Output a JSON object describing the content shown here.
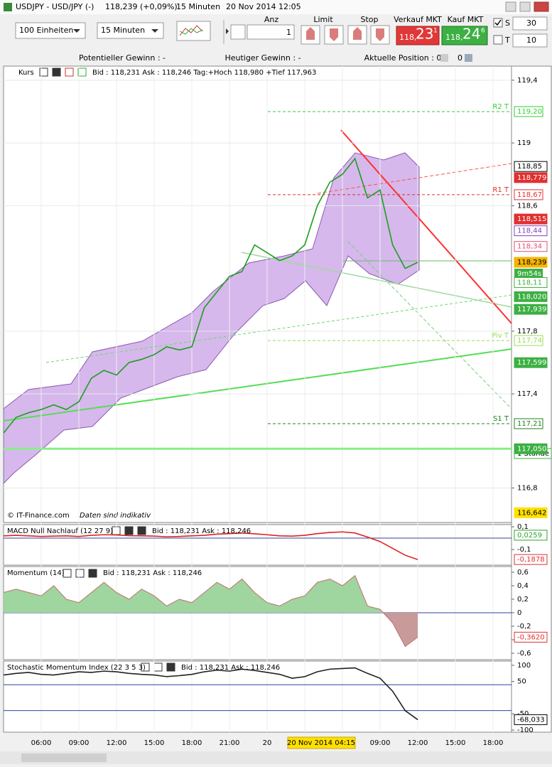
{
  "window": {
    "title": "USDJPY - USD/JPY (-)",
    "quote": "118,239 (+0,09%)",
    "interval": "15 Minuten",
    "datetime": "20 Nov 2014 12:05"
  },
  "toolbar": {
    "units": "100 Einheiten",
    "interval": "15 Minuten",
    "qty_label": "Anz",
    "qty": "1",
    "limit": "Limit",
    "stop": "Stop",
    "sell_label": "Verkauf MKT",
    "sell_prefix": "118,",
    "sell_big": "23",
    "sell_sup": "1",
    "buy_label": "Kauf MKT",
    "buy_prefix": "118,",
    "buy_big": "24",
    "buy_sup": "6",
    "s_label": "S",
    "s_value": "30",
    "t_label": "T",
    "t_value": "10"
  },
  "status": {
    "potential": "Potentieller Gewinn : -",
    "today": "Heutiger Gewinn : -",
    "position": "Aktuelle Position : 0",
    "position2": "0"
  },
  "xaxis": {
    "labels": [
      "06:00",
      "09:00",
      "12:00",
      "15:00",
      "18:00",
      "21:00",
      "20",
      null,
      null,
      "09:00",
      "12:00",
      "15:00",
      "18:00"
    ],
    "cursor_label": "20 Nov 2014 04:15"
  },
  "chart_data": [
    {
      "type": "line",
      "title": "Kurs",
      "info": "Bid : 118,231 Ask : 118,246 Tag:+Hoch 118,980 +Tief 117,963",
      "watermark": "© IT-Finance.com",
      "watermark2": "Daten sind indikativ",
      "countdown": "9m54s",
      "period_label": "1 Stunde",
      "grid": true,
      "ylim": [
        116.58,
        119.49
      ],
      "yticks": [
        {
          "value": 119.4,
          "label": "119,4"
        },
        119,
        {
          "value": 118.6,
          "label": "118,6"
        },
        {
          "value": 117.8,
          "label": "117,8"
        },
        {
          "value": 117.4,
          "label": "117,4"
        },
        {
          "value": 116.8,
          "label": "116,8"
        }
      ],
      "levels": [
        {
          "label": "R2 T",
          "value": 119.2,
          "tag": "119,20",
          "color": "#33cc33"
        },
        {
          "label": "R1 T",
          "value": 118.67,
          "tag": "118,67",
          "color": "#e03030"
        },
        {
          "label": "Piv T",
          "value": 117.74,
          "tag": "117,74",
          "color": "#99dd55"
        },
        {
          "label": "S1 T",
          "value": 117.21,
          "tag": "117,21",
          "color": "#208020"
        }
      ],
      "tags": [
        {
          "value": 118.85,
          "label": "118,85",
          "bg": "#ffffff",
          "fg": "#000000"
        },
        {
          "value": 118.779,
          "label": "118,779",
          "bg": "#e03030",
          "fg": "#ffffff"
        },
        {
          "value": 118.515,
          "label": "118,515",
          "bg": "#e03030",
          "fg": "#ffffff"
        },
        {
          "value": 118.44,
          "label": "118,44",
          "bg": "#ffffff",
          "fg": "#8040c0"
        },
        {
          "value": 118.34,
          "label": "118,34",
          "bg": "#ffffff",
          "fg": "#e05070"
        },
        {
          "value": 118.239,
          "label": "118,239",
          "bg": "#f5b400",
          "fg": "#000000"
        },
        {
          "value": 118.11,
          "label": "118,11",
          "bg": "#ffffff",
          "fg": "#40b040"
        },
        {
          "value": 118.02,
          "label": "118,020",
          "bg": "#3cb043",
          "fg": "#ffffff"
        },
        {
          "value": 117.939,
          "label": "117,939",
          "bg": "#3cb043",
          "fg": "#ffffff"
        },
        {
          "value": 117.599,
          "label": "117,599",
          "bg": "#3cb043",
          "fg": "#ffffff"
        },
        {
          "value": 117.05,
          "label": "117,050",
          "bg": "#3cb043",
          "fg": "#ffffff",
          "line": true
        },
        {
          "value": 116.642,
          "label": "116,642",
          "bg": "#ffe000",
          "fg": "#000000"
        }
      ],
      "color": "#1e9e1e",
      "values": [
        117.15,
        117.25,
        117.28,
        117.3,
        117.33,
        117.3,
        117.35,
        117.5,
        117.55,
        117.52,
        117.6,
        117.62,
        117.65,
        117.7,
        117.68,
        117.7,
        117.95,
        118.05,
        118.15,
        118.18,
        118.35,
        118.3,
        118.25,
        118.28,
        118.35,
        118.6,
        118.75,
        118.8,
        118.9,
        118.65,
        118.7,
        118.35,
        118.2,
        118.239
      ]
    },
    {
      "type": "line",
      "title": "MACD Null Nachlauf (12 27 9)",
      "info": "Bid : 118,231 Ask : 118,246",
      "ylim": [
        -0.237,
        0.119
      ],
      "yticks": [
        {
          "value": 0.1,
          "label": "0,1"
        },
        {
          "value": -0.1,
          "label": "-0,1"
        }
      ],
      "hlines": [
        0
      ],
      "tags": [
        {
          "value": 0.0259,
          "label": "0,0259",
          "bg": "#ffffff",
          "fg": "#30a030"
        },
        {
          "value": -0.1878,
          "label": "-0,1878",
          "bg": "#ffffff",
          "fg": "#e03030"
        }
      ],
      "color": "#e02020",
      "values": [
        0.02,
        0.025,
        0.02,
        0.015,
        0.018,
        0.02,
        0.015,
        0.025,
        0.03,
        0.028,
        0.022,
        0.02,
        0.018,
        0.012,
        0.015,
        0.02,
        0.025,
        0.035,
        0.04,
        0.045,
        0.038,
        0.03,
        0.02,
        0.018,
        0.025,
        0.04,
        0.05,
        0.055,
        0.045,
        0.01,
        -0.03,
        -0.09,
        -0.15,
        -0.1878
      ]
    },
    {
      "type": "area",
      "title": "Momentum (14)",
      "info": "Bid : 118,231 Ask : 118,246",
      "ylim": [
        -0.695,
        0.684
      ],
      "yticks": [
        {
          "value": 0.6,
          "label": "0,6"
        },
        {
          "value": 0.4,
          "label": "0,4"
        },
        {
          "value": 0.2,
          "label": "0,2"
        },
        0,
        {
          "value": -0.2,
          "label": "-0,2"
        },
        {
          "value": -0.4,
          "label": "-0,4"
        },
        {
          "value": -0.6,
          "label": "-0,6"
        }
      ],
      "hlines": [
        0
      ],
      "tags": [
        {
          "value": -0.362,
          "label": "-0,3620",
          "bg": "#ffffff",
          "fg": "#e03030"
        }
      ],
      "color": "#9fd59f",
      "color_negative": "#c99a9a",
      "values": [
        0.3,
        0.35,
        0.3,
        0.25,
        0.4,
        0.2,
        0.15,
        0.3,
        0.45,
        0.3,
        0.2,
        0.35,
        0.25,
        0.1,
        0.2,
        0.15,
        0.3,
        0.45,
        0.35,
        0.5,
        0.3,
        0.15,
        0.1,
        0.2,
        0.25,
        0.45,
        0.5,
        0.4,
        0.55,
        0.1,
        0.05,
        -0.15,
        -0.5,
        -0.362
      ]
    },
    {
      "type": "line",
      "title": "Stochastic Momentum Index (22 3 5 3)",
      "info": "Bid : 118,231 Ask : 118,246",
      "ylim": [
        -106.6,
        113
      ],
      "yticks": [
        100,
        50,
        -50,
        -100
      ],
      "hlines": [
        40,
        -40
      ],
      "tags": [
        {
          "value": -68.033,
          "label": "-68,033",
          "bg": "#ffffff",
          "fg": "#000000"
        }
      ],
      "color": "#202020",
      "values": [
        70,
        75,
        78,
        72,
        70,
        75,
        80,
        78,
        82,
        80,
        75,
        72,
        70,
        65,
        68,
        72,
        80,
        85,
        82,
        88,
        84,
        78,
        72,
        60,
        65,
        80,
        88,
        90,
        92,
        75,
        60,
        20,
        -40,
        -68.033
      ]
    }
  ]
}
